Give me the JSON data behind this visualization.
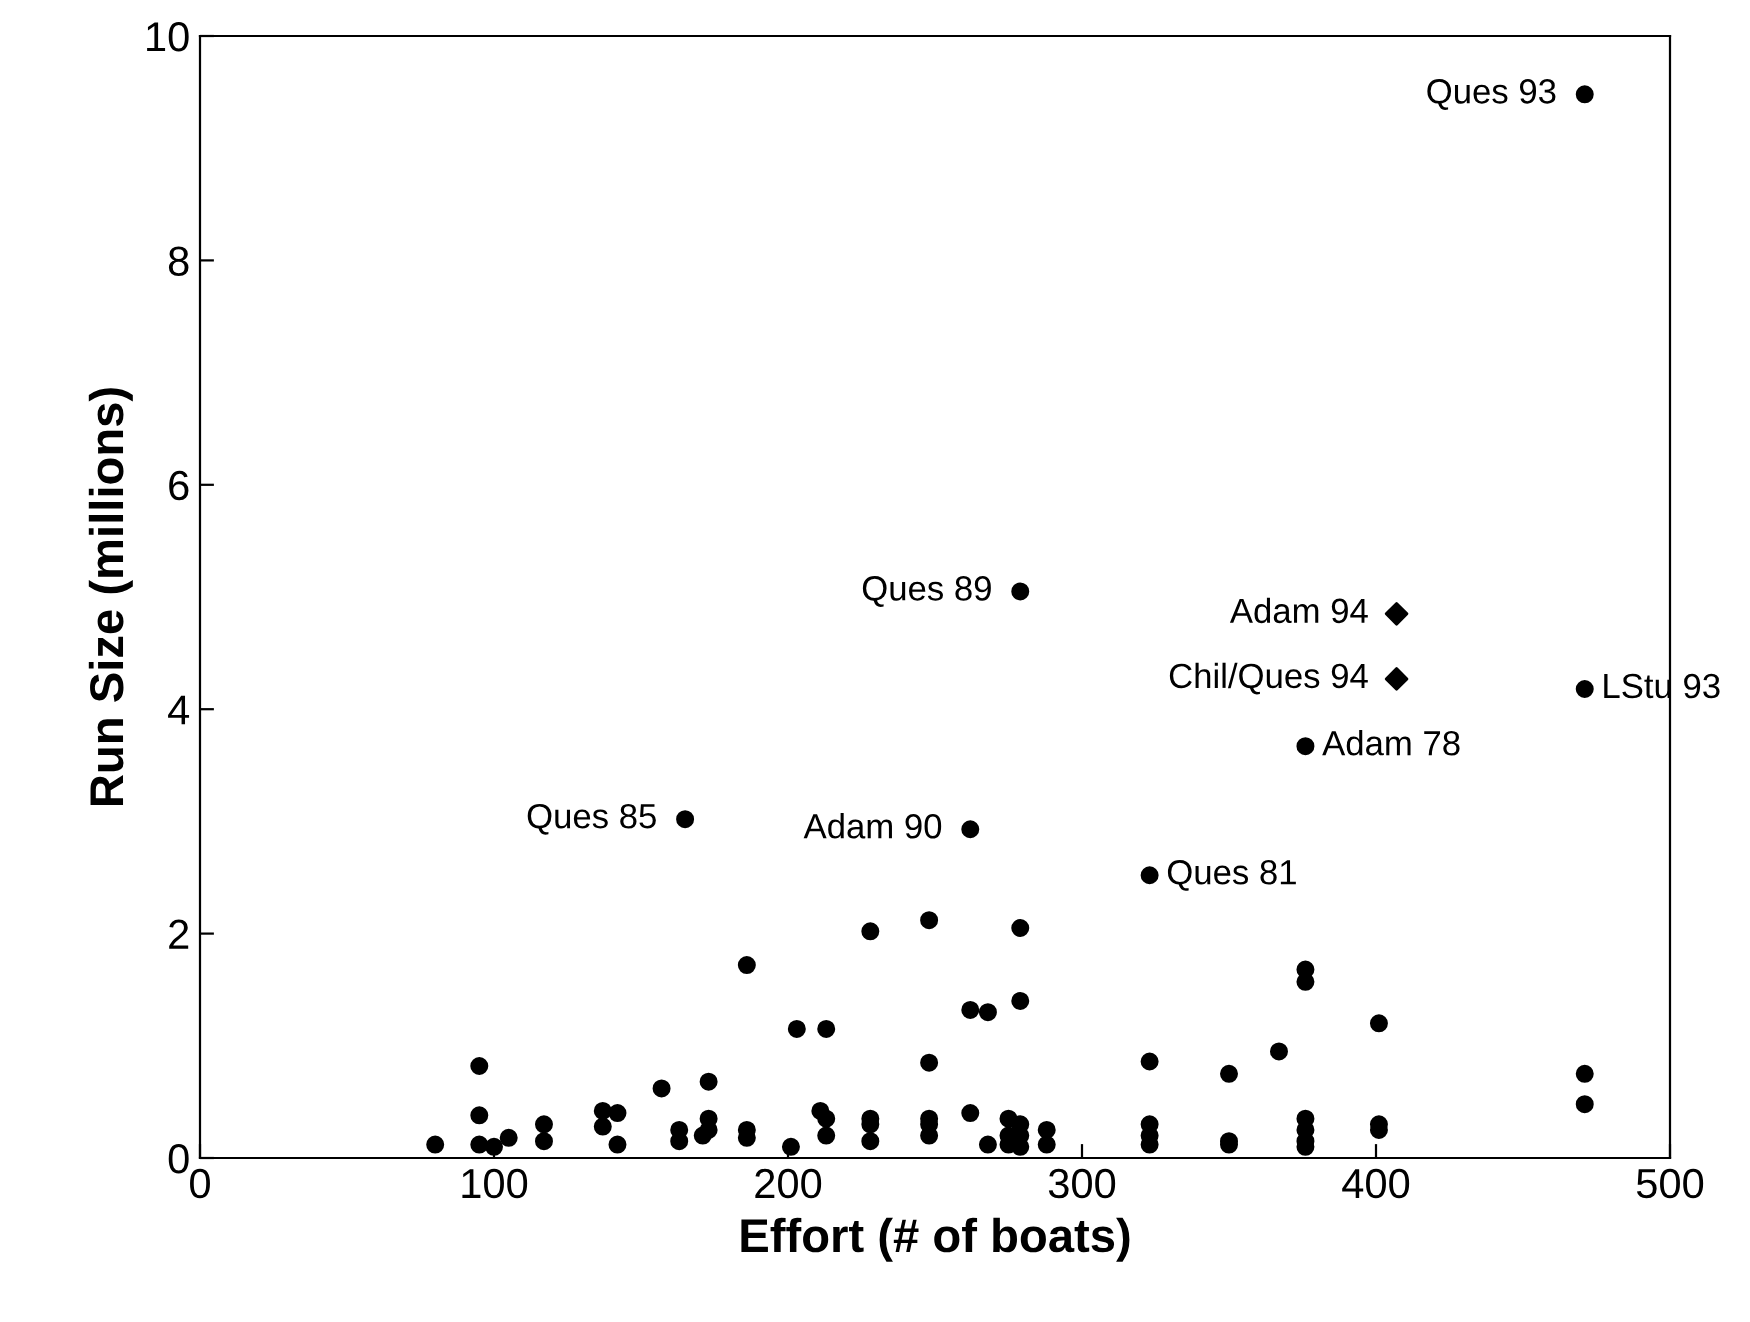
{
  "chart_data": {
    "type": "scatter",
    "xlabel": "Effort (# of boats)",
    "ylabel": "Run Size (millions)",
    "xlim": [
      0,
      500
    ],
    "ylim": [
      0,
      10
    ],
    "xticks": [
      0,
      100,
      200,
      300,
      400,
      500
    ],
    "yticks": [
      0,
      2,
      4,
      6,
      8,
      10
    ],
    "grid": false,
    "legend": false,
    "series": [
      {
        "color": "#000000",
        "marker": "circle",
        "x": [
          80,
          95,
          95,
          95,
          100,
          105,
          117,
          117,
          137,
          137,
          142,
          142,
          157,
          163,
          163,
          165,
          171,
          173,
          173,
          173,
          186,
          186,
          186,
          201,
          203,
          211,
          213,
          213,
          213,
          228,
          228,
          228,
          228,
          248,
          248,
          248,
          248,
          248,
          262,
          262,
          262,
          268,
          268,
          275,
          275,
          275,
          279,
          279,
          279,
          279,
          279,
          279,
          288,
          288,
          323,
          323,
          323,
          323,
          323,
          350,
          350,
          350,
          367,
          376,
          376,
          376,
          376,
          376,
          376,
          376,
          401,
          401,
          401,
          471,
          471,
          471,
          471
        ],
        "values": [
          0.12,
          0.82,
          0.38,
          0.12,
          0.1,
          0.18,
          0.3,
          0.15,
          0.42,
          0.28,
          0.4,
          0.12,
          0.62,
          0.25,
          0.15,
          3.02,
          0.2,
          0.68,
          0.35,
          0.25,
          1.72,
          0.25,
          0.18,
          0.1,
          1.15,
          0.42,
          1.15,
          0.35,
          0.2,
          2.02,
          0.35,
          0.3,
          0.15,
          2.12,
          0.85,
          0.35,
          0.3,
          0.2,
          2.93,
          0.4,
          1.32,
          1.3,
          0.12,
          0.35,
          0.2,
          0.12,
          5.05,
          2.05,
          1.4,
          0.3,
          0.2,
          0.1,
          0.25,
          0.12,
          2.52,
          0.86,
          0.3,
          0.2,
          0.12,
          0.75,
          0.15,
          0.12,
          0.95,
          3.67,
          1.68,
          1.57,
          0.35,
          0.25,
          0.15,
          0.1,
          1.2,
          0.3,
          0.25,
          9.48,
          4.18,
          0.75,
          0.48
        ]
      },
      {
        "color": "#000000",
        "marker": "diamond",
        "x": [
          407,
          407
        ],
        "values": [
          4.85,
          4.27
        ]
      }
    ],
    "annotations": [
      {
        "text": "Ques 93",
        "x": 471,
        "y": 9.48
      },
      {
        "text": "Ques 89",
        "x": 279,
        "y": 5.05
      },
      {
        "text": "Adam 94",
        "x": 407,
        "y": 4.85
      },
      {
        "text": "Chil/Ques 94",
        "x": 407,
        "y": 4.27
      },
      {
        "text": "LStu 93",
        "x": 471,
        "y": 4.18
      },
      {
        "text": "Adam 78",
        "x": 376,
        "y": 3.67
      },
      {
        "text": "Ques 85",
        "x": 165,
        "y": 3.02
      },
      {
        "text": "Adam 90",
        "x": 262,
        "y": 2.93
      },
      {
        "text": "Ques 81",
        "x": 323,
        "y": 2.52
      }
    ]
  }
}
